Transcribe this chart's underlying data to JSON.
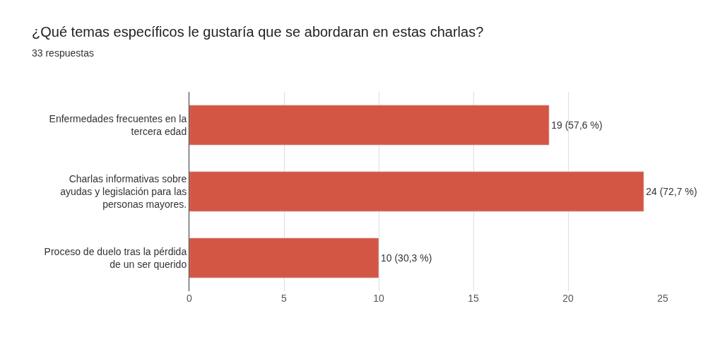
{
  "chart_data": {
    "type": "bar",
    "orientation": "horizontal",
    "title": "¿Qué temas específicos le gustaría que se abordaran en estas charlas?",
    "subtitle": "33 respuestas",
    "categories": [
      "Enfermedades frecuentes en la\ntercera edad",
      "Charlas informativas sobre\nayudas y legislación para las\npersonas mayores.",
      "Proceso de duelo tras la pérdida\nde un ser querido"
    ],
    "values": [
      19,
      24,
      10
    ],
    "value_labels": [
      "19 (57,6 %)",
      "24 (72,7 %)",
      "10 (30,3 %)"
    ],
    "color": "#d35644",
    "xlim": [
      0,
      25
    ],
    "xticks": [
      0,
      5,
      10,
      15,
      20,
      25
    ],
    "grid": "x"
  }
}
